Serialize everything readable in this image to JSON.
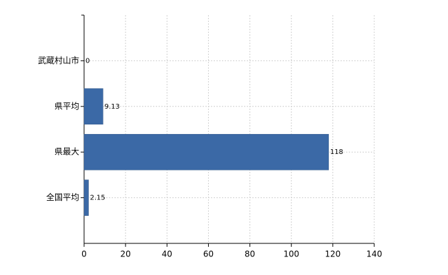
{
  "chart_data": {
    "type": "bar",
    "orientation": "horizontal",
    "categories": [
      "武蔵村山市",
      "県平均",
      "県最大",
      "全国平均"
    ],
    "values": [
      0,
      9.13,
      118,
      2.15
    ],
    "color": "#3b69a6",
    "xlim": [
      0,
      140
    ],
    "xticks": [
      0,
      20,
      40,
      60,
      80,
      100,
      120,
      140
    ],
    "grid": true
  }
}
